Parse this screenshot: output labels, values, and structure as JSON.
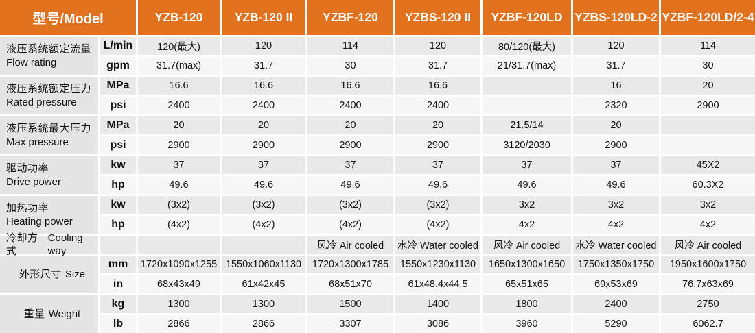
{
  "colors": {
    "header_bg": "#e2711d",
    "header_text": "#ffffff",
    "label_bg": "#e5e5e5",
    "row_dark": "#e9e9e9",
    "row_light": "#f6f6f6",
    "body_text": "#141414"
  },
  "header": {
    "model_label": "型号/Model",
    "models": [
      "YZB-120",
      "YZB-120 II",
      "YZBF-120",
      "YZBS-120 II",
      "YZBF-120LD",
      "YZBS-120LD-2",
      "YZBF-120LD/2-4"
    ]
  },
  "groups": [
    {
      "label_zh": "液压系统额定流量",
      "label_en": "Flow rating",
      "layout": "stacked",
      "rows": [
        {
          "unit": "L/min",
          "values": [
            "120(最大)",
            "120",
            "114",
            "120",
            "80/120(最大)",
            "120",
            "114"
          ]
        },
        {
          "unit": "gpm",
          "values": [
            "31.7(max)",
            "31.7",
            "30",
            "31.7",
            "21/31.7(max)",
            "31.7",
            "30"
          ]
        }
      ]
    },
    {
      "label_zh": "液压系统额定压力",
      "label_en": "Rated pressure",
      "layout": "stacked",
      "rows": [
        {
          "unit": "MPa",
          "values": [
            "16.6",
            "16.6",
            "16.6",
            "16.6",
            "",
            "16",
            "20"
          ]
        },
        {
          "unit": "psi",
          "values": [
            "2400",
            "2400",
            "2400",
            "2400",
            "",
            "2320",
            "2900"
          ]
        }
      ]
    },
    {
      "label_zh": "液压系统最大压力",
      "label_en": "Max pressure",
      "layout": "stacked",
      "rows": [
        {
          "unit": "MPa",
          "values": [
            "20",
            "20",
            "20",
            "20",
            "21.5/14",
            "20",
            ""
          ]
        },
        {
          "unit": "psi",
          "values": [
            "2900",
            "2900",
            "2900",
            "2900",
            "3120/2030",
            "2900",
            ""
          ]
        }
      ]
    },
    {
      "label_zh": "驱动功率",
      "label_en": "Drive power",
      "layout": "stacked",
      "rows": [
        {
          "unit": "kw",
          "values": [
            "37",
            "37",
            "37",
            "37",
            "37",
            "37",
            "45X2"
          ]
        },
        {
          "unit": "hp",
          "values": [
            "49.6",
            "49.6",
            "49.6",
            "49.6",
            "49.6",
            "49.6",
            "60.3X2"
          ]
        }
      ]
    },
    {
      "label_zh": "加热功率",
      "label_en": "Heating power",
      "layout": "stacked",
      "rows": [
        {
          "unit": "kw",
          "values": [
            "(3x2)",
            "(3x2)",
            "(3x2)",
            "(3x2)",
            "3x2",
            "3x2",
            "3x2"
          ]
        },
        {
          "unit": "hp",
          "values": [
            "(4x2)",
            "(4x2)",
            "(4x2)",
            "(4x2)",
            "4x2",
            "4x2",
            "4x2"
          ]
        }
      ]
    },
    {
      "label_zh": "冷却方式",
      "label_en": "Cooling way",
      "layout": "inline",
      "rows": [
        {
          "unit": "",
          "values": [
            "",
            "",
            "风冷 Air cooled",
            "水冷 Water cooled",
            "风冷 Air cooled",
            "水冷 Water cooled",
            "风冷 Air cooled"
          ]
        }
      ]
    },
    {
      "label_zh": "外形尺寸",
      "label_en": "Size",
      "layout": "inline",
      "rows": [
        {
          "unit": "mm",
          "values": [
            "1720x1090x1255",
            "1550x1060x1130",
            "1720x1300x1785",
            "1550x1230x1130",
            "1650x1300x1650",
            "1750x1350x1750",
            "1950x1600x1750"
          ]
        },
        {
          "unit": "in",
          "values": [
            "68x43x49",
            "61x42x45",
            "68x51x70",
            "61x48.4x44.5",
            "65x51x65",
            "69x53x69",
            "76.7x63x69"
          ]
        }
      ]
    },
    {
      "label_zh": "重量",
      "label_en": "Weight",
      "layout": "inline",
      "rows": [
        {
          "unit": "kg",
          "values": [
            "1300",
            "1300",
            "1500",
            "1400",
            "1800",
            "2400",
            "2750"
          ]
        },
        {
          "unit": "lb",
          "values": [
            "2866",
            "2866",
            "3307",
            "3086",
            "3960",
            "5290",
            "6062.7"
          ]
        }
      ]
    }
  ]
}
